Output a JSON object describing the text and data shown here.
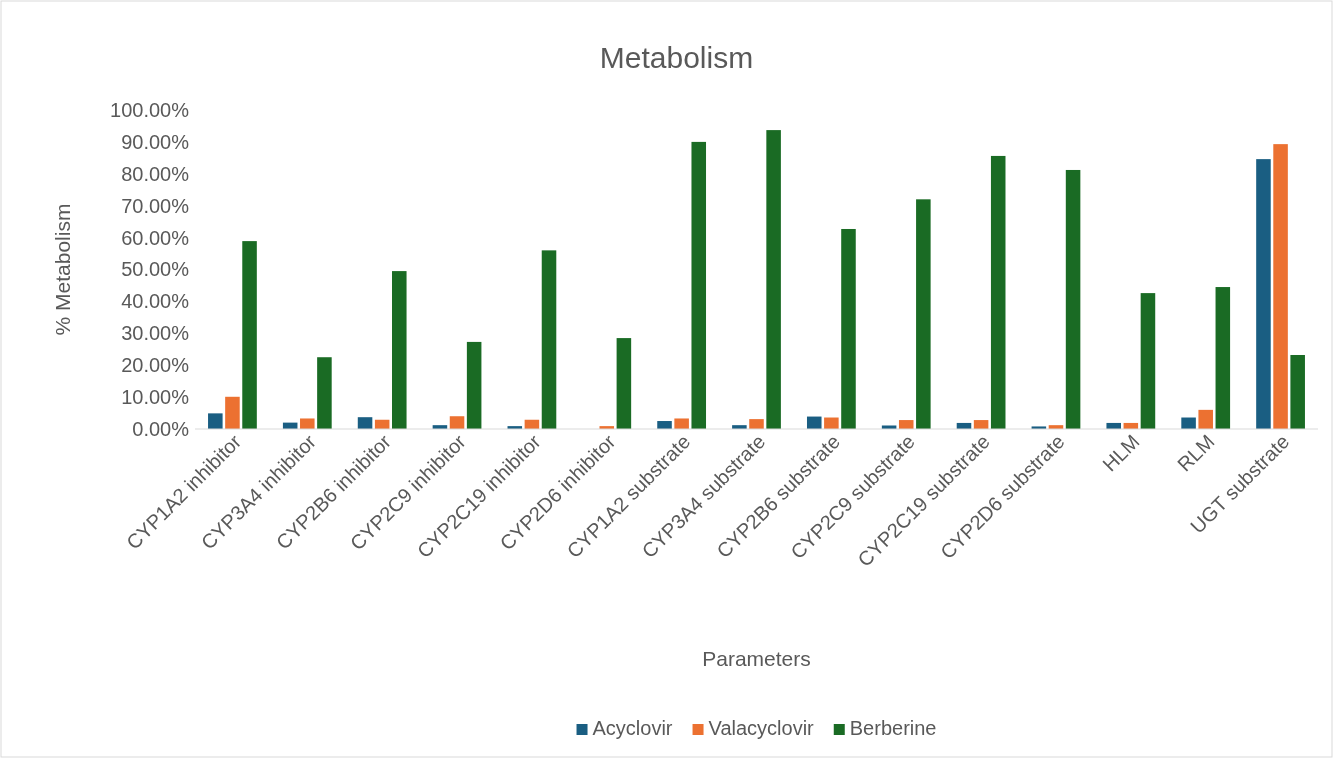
{
  "chart_data": {
    "type": "bar",
    "title": "Metabolism",
    "xlabel": "Parameters",
    "ylabel": "% Metabolism",
    "categories": [
      "CYP1A2 inhibitor",
      "CYP3A4 inhibitor",
      "CYP2B6 inhibitor",
      "CYP2C9 inhibitor",
      "CYP2C19 inhibitor",
      "CYP2D6 inhibitor",
      "CYP1A2 substrate",
      "CYP3A4 substrate",
      "CYP2B6 substrate",
      "CYP2C9 substrate",
      "CYP2C19 substrate",
      "CYP2D6 substrate",
      "HLM",
      "RLM",
      "UGT substrate"
    ],
    "series": [
      {
        "name": "Acyclovir",
        "color": "#1a5e82",
        "values": [
          4.9,
          2.0,
          3.7,
          1.2,
          0.9,
          0,
          2.5,
          1.2,
          3.9,
          1.1,
          1.9,
          0.8,
          1.9,
          3.6,
          84.6
        ]
      },
      {
        "name": "Valacyclovir",
        "color": "#ec7131",
        "values": [
          10.1,
          3.3,
          2.9,
          4.0,
          2.9,
          0.9,
          3.3,
          3.1,
          3.6,
          2.8,
          2.8,
          1.2,
          1.9,
          6.0,
          89.3
        ]
      },
      {
        "name": "Berberine",
        "color": "#1a6b24",
        "values": [
          58.9,
          22.5,
          49.5,
          27.3,
          56.0,
          28.5,
          90.0,
          93.7,
          62.7,
          72.0,
          85.6,
          81.2,
          42.6,
          44.5,
          23.2
        ]
      }
    ],
    "ylim": [
      0,
      100
    ],
    "yticks": [
      {
        "value": 0,
        "label": "0.00%"
      },
      {
        "value": 10,
        "label": "10.00%"
      },
      {
        "value": 20,
        "label": "20.00%"
      },
      {
        "value": 30,
        "label": "30.00%"
      },
      {
        "value": 40,
        "label": "40.00%"
      },
      {
        "value": 50,
        "label": "50.00%"
      },
      {
        "value": 60,
        "label": "60.00%"
      },
      {
        "value": 70,
        "label": "70.00%"
      },
      {
        "value": 80,
        "label": "80.00%"
      },
      {
        "value": 90,
        "label": "90.00%"
      },
      {
        "value": 100,
        "label": "100.00%"
      }
    ],
    "grid": false,
    "legend": "bottom"
  }
}
